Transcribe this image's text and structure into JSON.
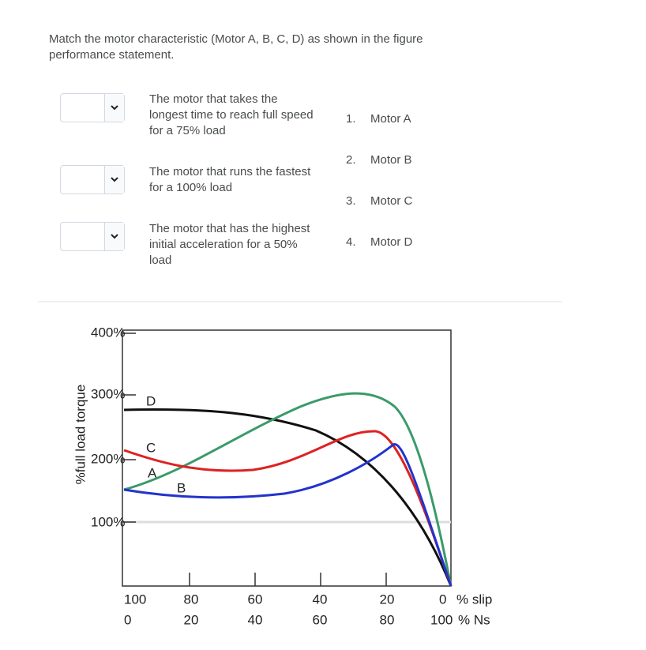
{
  "question": {
    "line1": "Match the motor characteristic (Motor A, B, C, D) as shown in the figure",
    "line2": "performance statement."
  },
  "statements": [
    "The motor that takes the longest time to reach full speed for a 75% load",
    "The motor that runs the fastest for a 100% load",
    "The motor that has the highest initial acceleration for a 50% load"
  ],
  "options": [
    {
      "number": "1.",
      "label": "Motor A"
    },
    {
      "number": "2.",
      "label": "Motor B"
    },
    {
      "number": "3.",
      "label": "Motor C"
    },
    {
      "number": "4.",
      "label": "Motor D"
    }
  ],
  "figure": {
    "y_axis_label": "%full load torque",
    "y_tick_labels": [
      "400%",
      "300%",
      "200%",
      "100%"
    ],
    "slip_labels": [
      "100",
      "80",
      "60",
      "40",
      "20",
      "0"
    ],
    "speed_labels": [
      "0",
      "20",
      "40",
      "60",
      "80",
      "100"
    ],
    "slip_unit": "% slip",
    "speed_unit": "% Ns",
    "curve_labels": [
      "D",
      "C",
      "A",
      "B"
    ]
  }
}
